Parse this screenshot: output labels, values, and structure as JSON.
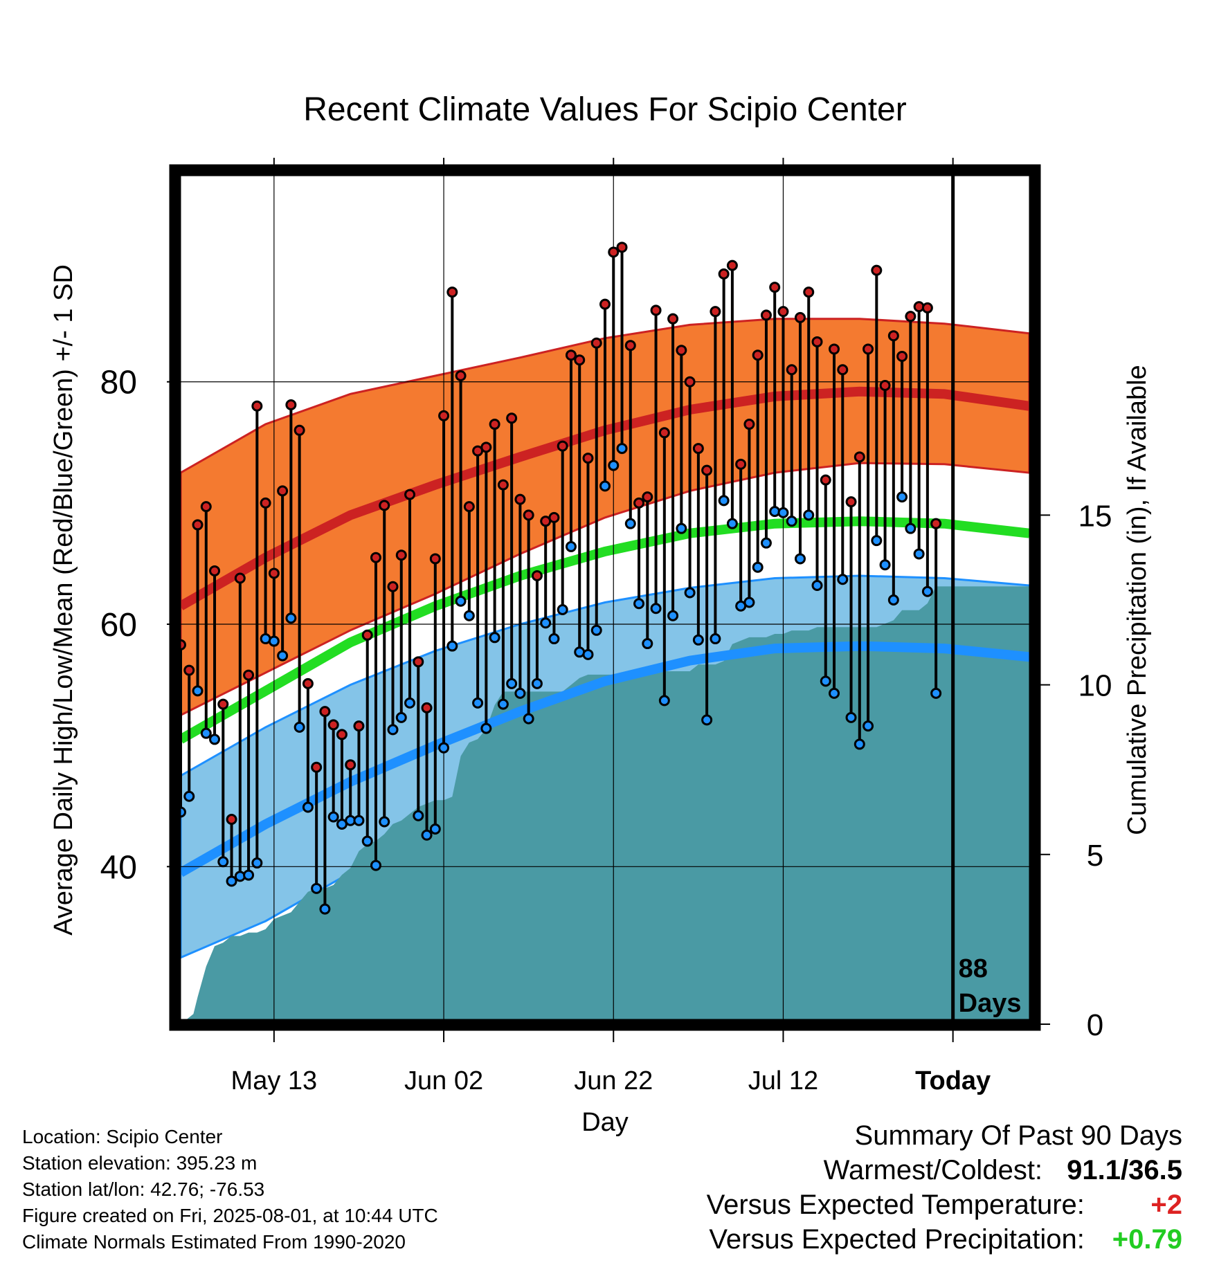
{
  "chart_data": {
    "type": "line",
    "title": "Recent Climate Values For Scipio Center",
    "xlabel": "Day",
    "ylabel": "Average Daily High/Low/Mean (Red/Blue/Green) +/- 1 SD",
    "y2label": "Cumulative Precipitation (in), If Available",
    "xticks": [
      "May 13",
      "Jun 02",
      "Jun 22",
      "Jul 12",
      "Today"
    ],
    "xtick_days": [
      11,
      31,
      51,
      71,
      91
    ],
    "xlim": [
      0,
      100
    ],
    "ylim": [
      27,
      97
    ],
    "yticks": [
      40,
      60,
      80
    ],
    "y2lim": [
      0,
      25
    ],
    "y2ticks": [
      0,
      5,
      10,
      15
    ],
    "today_label": [
      "88",
      "Days"
    ],
    "colors": {
      "high_band": "#f47a30",
      "high_line": "#cc2222",
      "mean_line": "#22dd22",
      "low_band": "#84c4e8",
      "low_line": "#1e90ff",
      "precip": "#4a9aa4",
      "high_dot": "#cc2222",
      "low_dot": "#1e90ff"
    },
    "normals": {
      "x": [
        0,
        10,
        20,
        30,
        40,
        50,
        60,
        70,
        80,
        90,
        100
      ],
      "high_mean": [
        61.5,
        65.5,
        69.0,
        71.5,
        73.8,
        76.0,
        77.7,
        78.8,
        79.2,
        79.0,
        78.0
      ],
      "high_upper": [
        72.5,
        76.5,
        79.0,
        80.5,
        82.0,
        83.6,
        84.7,
        85.2,
        85.2,
        84.8,
        84.0
      ],
      "high_lower": [
        52.5,
        56.0,
        59.5,
        62.5,
        65.8,
        68.8,
        71.0,
        72.5,
        73.3,
        73.2,
        72.5
      ],
      "mean_mean": [
        50.5,
        54.5,
        58.5,
        61.5,
        64.0,
        66.0,
        67.5,
        68.3,
        68.5,
        68.3,
        67.5
      ],
      "low_mean": [
        39.5,
        43.5,
        47.0,
        50.0,
        52.8,
        55.3,
        57.0,
        58.0,
        58.2,
        58.0,
        57.3
      ],
      "low_upper": [
        47.5,
        51.5,
        55.0,
        57.8,
        60.0,
        61.8,
        63.0,
        63.8,
        64.0,
        63.8,
        63.2
      ],
      "low_lower": [
        32.5,
        35.5,
        39.5,
        43.0,
        46.0,
        48.5,
        50.8,
        52.0,
        52.5,
        52.5,
        51.8
      ]
    },
    "days": [
      0,
      1,
      2,
      3,
      4,
      5,
      6,
      7,
      8,
      9,
      10,
      11,
      12,
      13,
      14,
      15,
      16,
      17,
      18,
      19,
      20,
      21,
      22,
      23,
      24,
      25,
      26,
      27,
      28,
      29,
      30,
      31,
      32,
      33,
      34,
      35,
      36,
      37,
      38,
      39,
      40,
      41,
      42,
      43,
      44,
      45,
      46,
      47,
      48,
      49,
      50,
      51,
      52,
      53,
      54,
      55,
      56,
      57,
      58,
      59,
      60,
      61,
      62,
      63,
      64,
      65,
      66,
      67,
      68,
      69,
      70,
      71,
      72,
      73,
      74,
      75,
      76,
      77,
      78,
      79,
      80,
      81,
      82,
      83,
      84,
      85,
      86,
      87,
      88,
      89,
      90
    ],
    "high": [
      58.3,
      56.2,
      68.2,
      69.7,
      64.4,
      53.4,
      43.9,
      63.8,
      55.8,
      78.0,
      70.0,
      64.2,
      71.0,
      78.1,
      76.0,
      55.1,
      48.2,
      52.8,
      51.7,
      50.9,
      48.4,
      51.6,
      59.1,
      65.5,
      69.8,
      63.1,
      65.7,
      70.7,
      56.9,
      53.1,
      65.4,
      77.2,
      87.4,
      80.5,
      69.7,
      74.3,
      74.6,
      76.5,
      71.5,
      77.0,
      70.3,
      69.0,
      64.0,
      68.5,
      68.8,
      74.7,
      82.2,
      81.8,
      73.7,
      83.2,
      86.4,
      90.7,
      91.1,
      83.0,
      70.0,
      70.5,
      85.9,
      75.8,
      85.2,
      82.6,
      80.0,
      74.5,
      72.7,
      85.8,
      88.9,
      89.6,
      73.2,
      76.5,
      82.2,
      85.5,
      87.8,
      85.8,
      81.0,
      85.3,
      87.4,
      83.3,
      71.9,
      82.7,
      81.0,
      70.1,
      73.8,
      82.7,
      89.2,
      79.7,
      83.8,
      82.1,
      85.4,
      86.2,
      86.1,
      68.3,
      null
    ],
    "low": [
      44.5,
      45.8,
      54.5,
      51.0,
      50.5,
      40.4,
      38.8,
      39.2,
      39.3,
      40.3,
      58.8,
      58.6,
      57.4,
      60.5,
      51.5,
      44.9,
      38.2,
      36.5,
      44.1,
      43.5,
      43.8,
      43.8,
      42.1,
      40.1,
      43.7,
      51.3,
      52.3,
      53.5,
      44.2,
      42.6,
      43.1,
      49.8,
      58.2,
      61.9,
      60.7,
      53.5,
      51.4,
      58.9,
      53.4,
      55.1,
      54.3,
      52.2,
      55.1,
      60.1,
      58.8,
      61.2,
      66.4,
      57.7,
      57.5,
      59.5,
      71.4,
      73.1,
      74.5,
      68.3,
      61.7,
      58.4,
      61.3,
      53.7,
      60.7,
      67.9,
      62.6,
      58.7,
      52.1,
      58.8,
      70.2,
      68.3,
      61.5,
      61.8,
      64.7,
      66.7,
      69.3,
      69.2,
      68.5,
      65.4,
      69.0,
      63.2,
      55.3,
      54.3,
      63.7,
      52.3,
      50.1,
      51.6,
      66.9,
      64.9,
      62.0,
      70.5,
      67.9,
      65.8,
      62.7,
      54.3,
      null
    ],
    "precip": {
      "days": [
        0,
        1.5,
        2,
        3,
        4,
        5,
        6,
        7,
        8,
        9,
        10,
        11,
        12,
        13,
        14,
        15,
        16,
        17,
        18,
        19,
        20,
        21,
        22,
        23,
        24,
        25,
        26,
        27,
        28,
        29,
        30,
        31,
        32,
        33,
        34,
        35,
        36,
        37,
        38,
        39,
        40,
        45,
        46,
        47,
        48,
        50,
        51,
        52,
        53,
        54,
        55,
        60,
        61,
        62,
        63,
        64,
        65,
        66,
        67,
        68,
        69,
        70,
        71,
        72,
        73,
        74,
        75,
        76,
        77,
        78,
        79,
        80,
        81,
        82,
        83,
        84,
        85,
        86,
        87,
        88,
        89,
        90,
        91,
        100
      ],
      "values": [
        0,
        0.3,
        0.8,
        1.7,
        2.3,
        2.4,
        2.6,
        2.6,
        2.7,
        2.7,
        2.8,
        3.1,
        3.2,
        3.3,
        3.6,
        3.9,
        4.0,
        4.0,
        4.1,
        4.4,
        4.6,
        5.1,
        5.3,
        5.4,
        5.6,
        5.9,
        6.0,
        6.2,
        6.4,
        6.5,
        6.6,
        6.6,
        6.7,
        7.9,
        8.3,
        8.4,
        8.7,
        9.4,
        9.8,
        9.8,
        9.8,
        9.8,
        10.0,
        10.2,
        10.3,
        10.3,
        10.3,
        10.3,
        10.3,
        10.4,
        10.4,
        10.4,
        10.6,
        10.6,
        10.6,
        10.7,
        11.2,
        11.3,
        11.4,
        11.4,
        11.4,
        11.5,
        11.5,
        11.6,
        11.6,
        11.6,
        11.7,
        11.7,
        11.7,
        11.7,
        11.7,
        11.7,
        11.7,
        11.7,
        11.8,
        11.9,
        12.2,
        12.2,
        12.2,
        12.4,
        12.9,
        12.9,
        12.9,
        12.9
      ]
    }
  },
  "info": {
    "location": "Location: Scipio Center",
    "elevation": "Station elevation: 395.23 m",
    "latlon": "Station lat/lon: 42.76; -76.53",
    "created": "Figure created on Fri, 2025-08-01, at 10:44 UTC",
    "normals": "Climate Normals Estimated From 1990-2020"
  },
  "summary": {
    "heading": "Summary Of Past 90 Days",
    "warmest_label": "Warmest/Coldest:",
    "warmest_value": "91.1/36.5",
    "temp_label": "Versus Expected Temperature:",
    "temp_value": "+2",
    "temp_color": "#dd2222",
    "precip_label": "Versus Expected Precipitation:",
    "precip_value": "+0.79",
    "precip_color": "#22cc22"
  }
}
